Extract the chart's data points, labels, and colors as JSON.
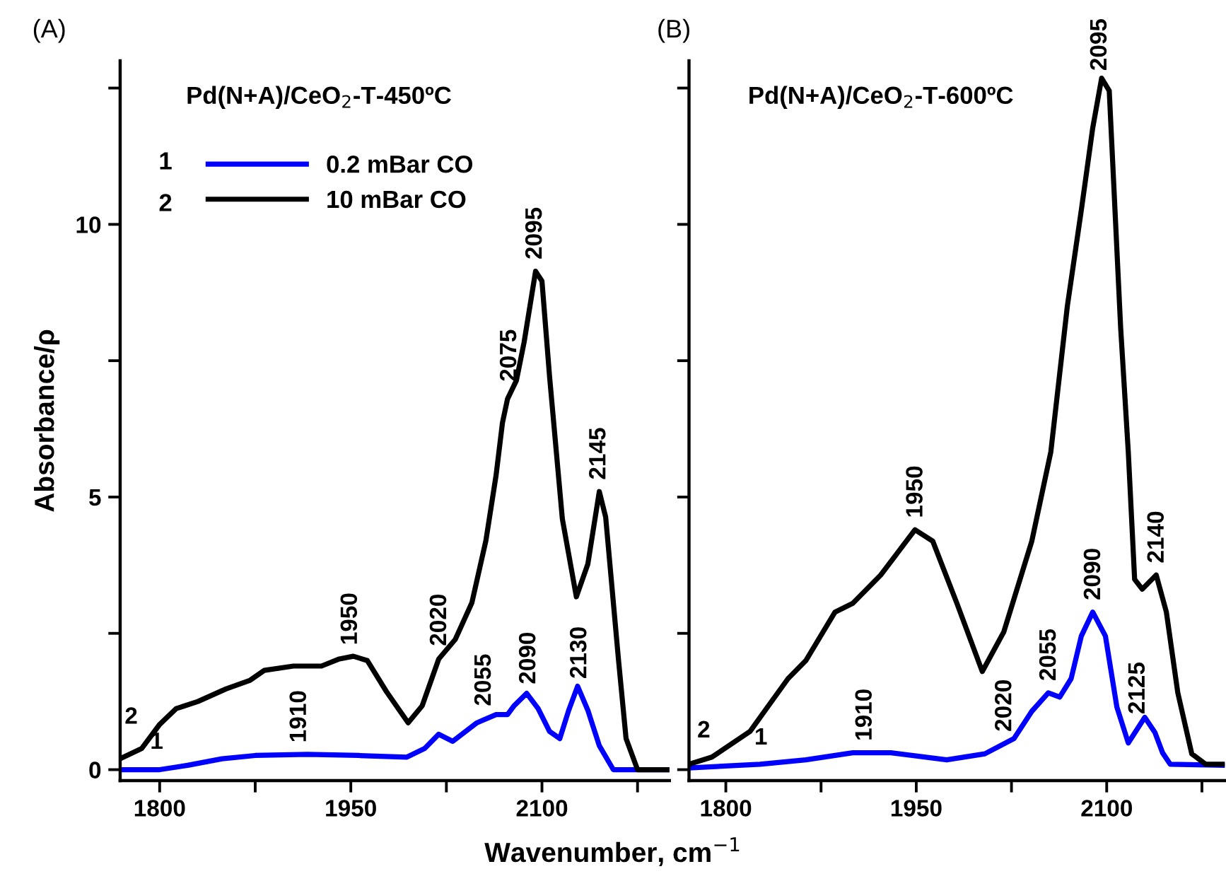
{
  "chart_data": [
    {
      "type": "line",
      "title": "(A)",
      "subtitle": "Pd(N+A)/CeO$_{2}$-T-450ºC",
      "ylabel": "Absorbance/ρ",
      "xlabel": "Wavenumber, cm$^{−1}$",
      "xlim": [
        1769,
        2200
      ],
      "xticks": [
        1800,
        {
          "value": 1875,
          "label": null
        },
        1950,
        {
          "value": 2025,
          "label": null
        },
        2100,
        {
          "value": 2175,
          "label": null
        }
      ],
      "ylim": [
        -0.2,
        13.0
      ],
      "yticks": [
        0,
        {
          "value": 2.5,
          "label": null
        },
        5,
        {
          "value": 7.5,
          "label": null
        },
        10,
        {
          "value": 12.5,
          "label": null
        }
      ],
      "legend": "top left",
      "grid": false,
      "series": [
        {
          "name": "0.2 mBar CO",
          "color": "#0000ff",
          "x": [
            1769,
            1800,
            1822,
            1849,
            1875,
            1916,
            1956,
            1994,
            2008,
            2019,
            2030,
            2049,
            2064,
            2073,
            2078,
            2088,
            2097,
            2106,
            2114,
            2121,
            2128,
            2136,
            2145,
            2156,
            2200
          ],
          "values": [
            0.0,
            0.0,
            0.08,
            0.2,
            0.26,
            0.28,
            0.26,
            0.23,
            0.39,
            0.65,
            0.52,
            0.86,
            1.01,
            1.01,
            1.17,
            1.4,
            1.12,
            0.7,
            0.57,
            1.09,
            1.53,
            1.09,
            0.44,
            0.0,
            0.0
          ]
        },
        {
          "name": "10 mBar CO",
          "color": "#000000",
          "x": [
            1769,
            1786,
            1800,
            1813,
            1830,
            1852,
            1871,
            1882,
            1905,
            1927,
            1941,
            1952,
            1963,
            1978,
            1995,
            2006,
            2019,
            2032,
            2045,
            2056,
            2064,
            2069,
            2073,
            2080,
            2086,
            2095,
            2100,
            2106,
            2116,
            2127,
            2136,
            2145,
            2150,
            2160,
            2166,
            2175,
            2200
          ],
          "values": [
            0.2,
            0.39,
            0.83,
            1.12,
            1.25,
            1.48,
            1.64,
            1.82,
            1.9,
            1.9,
            2.03,
            2.08,
            2.0,
            1.43,
            0.86,
            1.17,
            2.03,
            2.39,
            3.06,
            4.2,
            5.4,
            6.36,
            6.8,
            7.14,
            7.84,
            9.14,
            8.96,
            7.2,
            4.6,
            3.17,
            3.77,
            5.1,
            4.63,
            2.03,
            0.57,
            0.0,
            0.0
          ]
        }
      ],
      "annotations": [
        "1",
        "2",
        {
          "text": "1",
          "x": 1810,
          "y": 0.04
        },
        {
          "text": "2",
          "x": 1790,
          "y": 0.5
        },
        {
          "text": "1910",
          "x": 1910,
          "y": 0.28
        },
        {
          "text": "1950",
          "x": 1950,
          "y": 2.07
        },
        {
          "text": "2020",
          "x": 2020,
          "y": 2.05
        },
        {
          "text": "2055",
          "x": 2055,
          "y": 0.95
        },
        {
          "text": "2090",
          "x": 2090,
          "y": 1.35
        },
        {
          "text": "2130",
          "x": 2130,
          "y": 1.45
        },
        {
          "text": "2075",
          "x": 2075,
          "y": 6.9
        },
        {
          "text": "2095",
          "x": 2095,
          "y": 9.14
        },
        {
          "text": "2145",
          "x": 2145,
          "y": 5.1
        }
      ]
    },
    {
      "type": "line",
      "title": "(B)",
      "subtitle": "Pd(N+A)/CeO$_{2}$-T-600ºC",
      "xlim": [
        1771,
        2193
      ],
      "xticks": [
        1800,
        {
          "value": 1875,
          "label": null
        },
        1950,
        {
          "value": 2025,
          "label": null
        },
        2100,
        {
          "value": 2175,
          "label": null
        }
      ],
      "ylim": [
        -0.2,
        13.0
      ],
      "yticks": [
        0,
        2.5,
        5,
        7.5,
        10,
        12.5
      ],
      "tick_labels": "x",
      "grid": false,
      "series": [
        {
          "color": "#0000ff",
          "x": [
            1771,
            1827,
            1863,
            1900,
            1930,
            1974,
            2004,
            2027,
            2041,
            2054,
            2063,
            2072,
            2080,
            2089,
            2099,
            2108,
            2117,
            2130,
            2138,
            2144,
            2150,
            2193
          ],
          "values": [
            0.03,
            0.1,
            0.18,
            0.31,
            0.31,
            0.18,
            0.29,
            0.57,
            1.07,
            1.41,
            1.33,
            1.67,
            2.45,
            2.89,
            2.45,
            1.15,
            0.49,
            0.96,
            0.68,
            0.31,
            0.1,
            0.08
          ]
        },
        {
          "color": "#000000",
          "x": [
            1771,
            1789,
            1819,
            1849,
            1863,
            1886,
            1900,
            1922,
            1949,
            1963,
            1982,
            2002,
            2019,
            2041,
            2056,
            2069,
            2080,
            2089,
            2096,
            2102,
            2111,
            2117,
            2122,
            2128,
            2139,
            2147,
            2156,
            2167,
            2178,
            2193
          ],
          "values": [
            0.1,
            0.23,
            0.7,
            1.67,
            2.0,
            2.89,
            3.05,
            3.57,
            4.4,
            4.19,
            3.05,
            1.8,
            2.53,
            4.19,
            5.83,
            8.5,
            10.26,
            11.77,
            12.68,
            12.45,
            8.1,
            5.83,
            3.49,
            3.31,
            3.57,
            2.89,
            1.41,
            0.29,
            0.1,
            0.1
          ]
        }
      ],
      "annotations": [
        {
          "text": "1",
          "x": 1840,
          "y": 0.12
        },
        {
          "text": "2",
          "x": 1795,
          "y": 0.25
        },
        {
          "text": "1910",
          "x": 1910,
          "y": 0.31
        },
        {
          "text": "1950",
          "x": 1950,
          "y": 4.4
        },
        {
          "text": "2020",
          "x": 2020,
          "y": 0.48
        },
        {
          "text": "2055",
          "x": 2055,
          "y": 1.41
        },
        {
          "text": "2090",
          "x": 2090,
          "y": 2.89
        },
        {
          "text": "2125",
          "x": 2125,
          "y": 0.8
        },
        {
          "text": "2095",
          "x": 2095,
          "y": 12.6
        },
        {
          "text": "2140",
          "x": 2140,
          "y": 3.57
        }
      ]
    }
  ]
}
